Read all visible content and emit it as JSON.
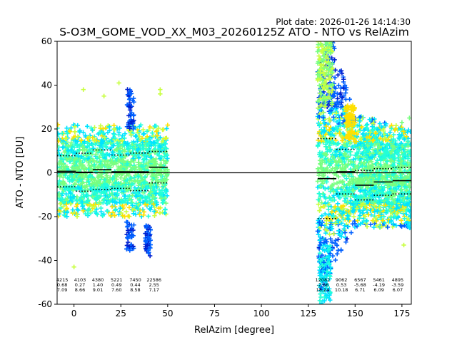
{
  "plot_date": "Plot date: 2026-01-26 14:14:30",
  "chart_data": {
    "type": "scatter",
    "title": "S-O3M_GOME_VOD_XX_M03_20260125Z ATO - NTO vs RelAzim",
    "xlabel": "RelAzim [degree]",
    "ylabel": "ATO - NTO [DU]",
    "xlim": [
      -9,
      180
    ],
    "ylim": [
      -60,
      60
    ],
    "xticks": [
      0,
      25,
      50,
      75,
      100,
      125,
      150,
      175
    ],
    "yticks": [
      -60,
      -40,
      -20,
      0,
      20,
      40,
      60
    ],
    "reference_line_y": 0,
    "colors": {
      "cyan": "#00e4ff",
      "aqua": "#22ffd8",
      "green": "#78ff80",
      "yellowgreen": "#c8ff40",
      "yellow": "#ffe000",
      "blue": "#0060ff",
      "darkblue": "#0020d0"
    },
    "scatter_clusters": [
      {
        "x": [
          -9,
          50
        ],
        "core": [
          -14,
          16
        ],
        "spread": [
          -28,
          30
        ]
      },
      {
        "x": [
          130,
          180
        ],
        "core": [
          -18,
          20
        ],
        "spread": [
          -60,
          60
        ]
      }
    ],
    "bins": [
      {
        "x_range": [
          -9,
          1
        ],
        "mean": 0.68,
        "std": 7.09,
        "count": 4215,
        "count_text": "4215",
        "mean_text": "0.68",
        "std_text": "7.09"
      },
      {
        "x_range": [
          1,
          10
        ],
        "mean": 0.27,
        "std": 8.66,
        "count": 4103,
        "count_text": "4103",
        "mean_text": "0.27",
        "std_text": "8.66"
      },
      {
        "x_range": [
          10,
          20
        ],
        "mean": 1.4,
        "std": 9.01,
        "count": 4380,
        "count_text": "4380",
        "mean_text": "1.40",
        "std_text": "9.01"
      },
      {
        "x_range": [
          20,
          30
        ],
        "mean": 0.49,
        "std": 7.6,
        "count": 5221,
        "count_text": "5221",
        "mean_text": "0.49",
        "std_text": "7.60"
      },
      {
        "x_range": [
          30,
          40
        ],
        "mean": 0.44,
        "std": 8.58,
        "count": 7450,
        "count_text": "7450",
        "mean_text": "0.44",
        "std_text": "8.58"
      },
      {
        "x_range": [
          40,
          50
        ],
        "mean": 2.55,
        "std": 7.17,
        "count": 22586,
        "count_text": "22586",
        "mean_text": "2.55",
        "std_text": "7.17"
      },
      {
        "x_range": [
          130,
          140
        ],
        "mean": -2.66,
        "std": 18.24,
        "count": 12082,
        "count_text": "12082",
        "mean_text": "-2.66",
        "std_text": "18.24"
      },
      {
        "x_range": [
          140,
          150
        ],
        "mean": 0.53,
        "std": 10.18,
        "count": 9062,
        "count_text": "9062",
        "mean_text": "0.53",
        "std_text": "10.18"
      },
      {
        "x_range": [
          150,
          160
        ],
        "mean": -5.68,
        "std": 6.71,
        "count": 6567,
        "count_text": "6567",
        "mean_text": "-5.68",
        "std_text": "6.71"
      },
      {
        "x_range": [
          160,
          170
        ],
        "mean": -4.19,
        "std": 6.09,
        "count": 5461,
        "count_text": "5461",
        "mean_text": "-4.19",
        "std_text": "6.09"
      },
      {
        "x_range": [
          170,
          180
        ],
        "mean": -3.59,
        "std": 6.07,
        "count": 4895,
        "count_text": "4895",
        "mean_text": "-3.59",
        "std_text": "6.07"
      }
    ]
  }
}
